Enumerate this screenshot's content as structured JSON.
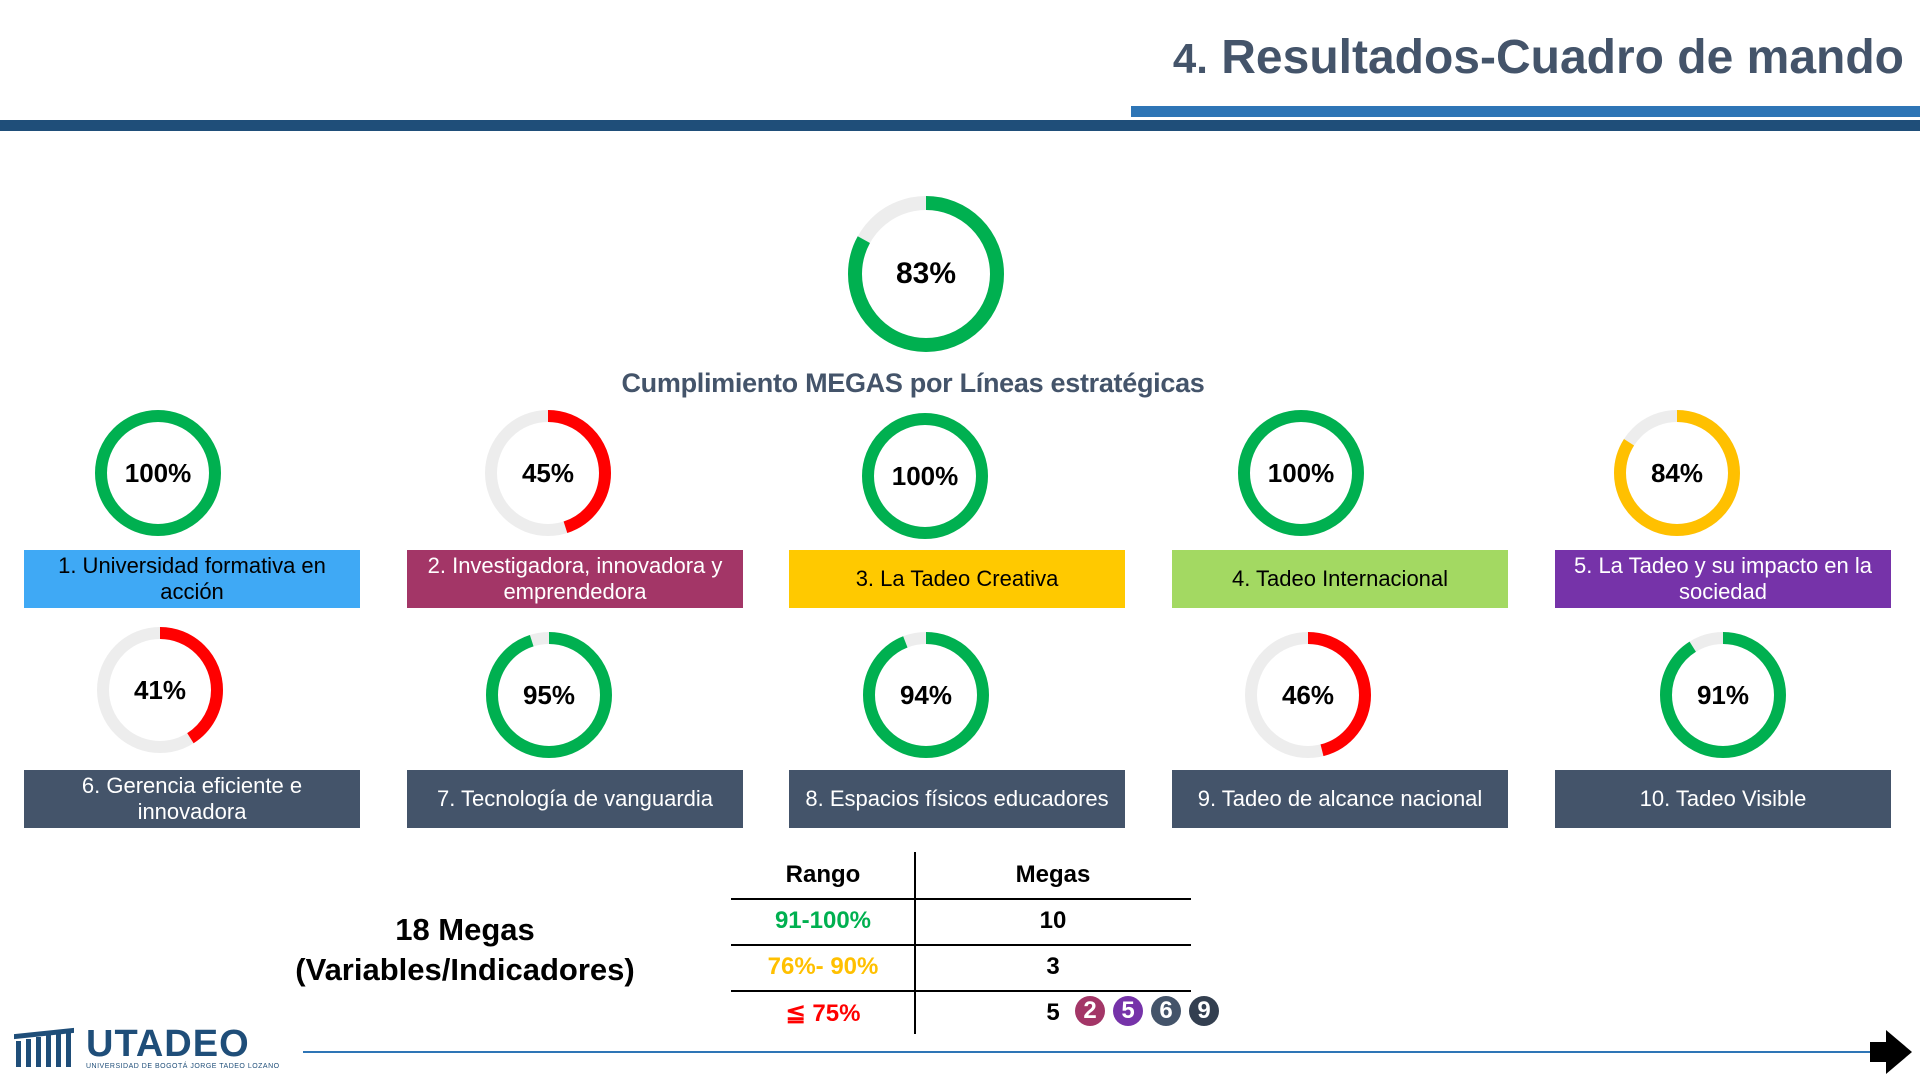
{
  "header": {
    "title_num": "4.",
    "title_text": " Resultados-Cuadro de mando"
  },
  "overall": {
    "pct_label": "83%",
    "value": 83,
    "color": "#00B050"
  },
  "subtitle": "Cumplimiento MEGAS por Líneas estratégicas",
  "lines": [
    {
      "label": "1. Universidad formativa en acción",
      "pct_label": "100%",
      "value": 100,
      "ring_color": "#00B050",
      "box_color": "#3FA9F5",
      "text_color": "#000000"
    },
    {
      "label": "2. Investigadora, innovadora y emprendedora",
      "pct_label": "45%",
      "value": 45,
      "ring_color": "#FF0000",
      "box_color": "#A33667",
      "text_color": "#ffffff"
    },
    {
      "label": "3. La Tadeo Creativa",
      "pct_label": "100%",
      "value": 100,
      "ring_color": "#00B050",
      "box_color": "#FFC900",
      "text_color": "#000000"
    },
    {
      "label": "4. Tadeo Internacional",
      "pct_label": "100%",
      "value": 100,
      "ring_color": "#00B050",
      "box_color": "#A3D962",
      "text_color": "#000000"
    },
    {
      "label": "5. La Tadeo y su impacto en la sociedad",
      "pct_label": "84%",
      "value": 84,
      "ring_color": "#FFC000",
      "box_color": "#7633A9",
      "text_color": "#ffffff"
    },
    {
      "label": "6. Gerencia eficiente e innovadora",
      "pct_label": "41%",
      "value": 41,
      "ring_color": "#FF0000",
      "box_color": "#44546A",
      "text_color": "#ffffff"
    },
    {
      "label": "7. Tecnología de vanguardia",
      "pct_label": "95%",
      "value": 95,
      "ring_color": "#00B050",
      "box_color": "#44546A",
      "text_color": "#ffffff"
    },
    {
      "label": "8. Espacios físicos educadores",
      "pct_label": "94%",
      "value": 94,
      "ring_color": "#00B050",
      "box_color": "#44546A",
      "text_color": "#ffffff"
    },
    {
      "label": "9. Tadeo de alcance nacional",
      "pct_label": "46%",
      "value": 46,
      "ring_color": "#FF0000",
      "box_color": "#44546A",
      "text_color": "#ffffff"
    },
    {
      "label": "10. Tadeo Visible",
      "pct_label": "91%",
      "value": 91,
      "ring_color": "#00B050",
      "box_color": "#44546A",
      "text_color": "#ffffff"
    }
  ],
  "summary": {
    "megas_line1": "18  Megas",
    "megas_line2": "(Variables/Indicadores)"
  },
  "range_table": {
    "header_a": "Rango",
    "header_b": "Megas",
    "rows": [
      {
        "range": "91-100%",
        "megas": "10",
        "color": "#00B050"
      },
      {
        "range": "76%- 90%",
        "megas": "3",
        "color": "#FFC000"
      },
      {
        "range": "≦ 75%",
        "megas": "5",
        "color": "#FF0000"
      }
    ],
    "badges": [
      {
        "num": "2",
        "color": "#A33667"
      },
      {
        "num": "5",
        "color": "#7633A9"
      },
      {
        "num": "6",
        "color": "#44546A"
      },
      {
        "num": "9",
        "color": "#333F50"
      }
    ]
  },
  "logo": {
    "word": "UTADEO",
    "sub": "UNIVERSIDAD DE BOGOTÁ JORGE TADEO LOZANO"
  },
  "ring_track_color": "#EDEDED"
}
